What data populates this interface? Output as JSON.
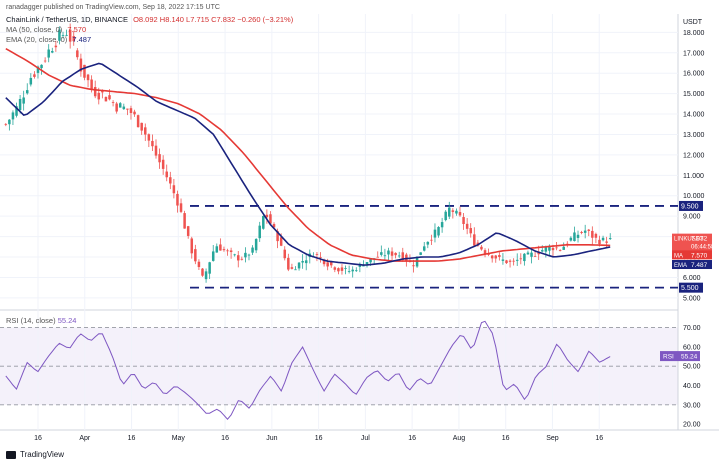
{
  "header": {
    "published": "ranadagger published on TradingView.com, Sep 18, 2022 17:15 UTC"
  },
  "legend": {
    "symbol": "ChainLink / TetherUS, 1D, BINANCE",
    "ohlc": "O8.092 H8.140 L7.715 C7.832 −0.260 (−3.21%)",
    "ma_label": "MA (50, close, 0)",
    "ma_value": "7.570",
    "ema_label": "EMA (20, close, 0)",
    "ema_value": "7.487",
    "rsi_label": "RSI (14, close)",
    "rsi_value": "55.24"
  },
  "colors": {
    "up": "#26a69a",
    "down": "#ef5350",
    "ma": "#e53935",
    "ema": "#1a237e",
    "rsi": "#7e57c2",
    "level": "#1a237e"
  },
  "chart_data": [
    {
      "type": "candlestick",
      "title": "ChainLink / TetherUS, 1D, BINANCE",
      "yaxis_unit": "USDT",
      "ylim": [
        4.7,
        18.8
      ],
      "y_ticks": [
        "18.000",
        "17.000",
        "16.000",
        "15.000",
        "14.000",
        "13.000",
        "12.000",
        "11.000",
        "10.000",
        "9.000",
        "8.000",
        "7.000",
        "6.000",
        "5.000"
      ],
      "x_ticks": [
        "16",
        "Apr",
        "16",
        "May",
        "16",
        "Jun",
        "16",
        "Jul",
        "16",
        "Aug",
        "16",
        "Sep",
        "16"
      ],
      "close_path": [
        13.5,
        14.4,
        15.8,
        16.6,
        17.6,
        18.1,
        16.4,
        15.2,
        14.9,
        14.4,
        14.2,
        13.4,
        12.2,
        11.0,
        9.6,
        7.4,
        5.9,
        7.6,
        7.2,
        6.9,
        7.3,
        9.2,
        8.0,
        6.3,
        6.8,
        7.2,
        6.7,
        6.4,
        6.3,
        6.7,
        7.0,
        7.2,
        7.1,
        6.6,
        7.7,
        8.3,
        9.4,
        8.8,
        7.7,
        7.2,
        6.9,
        6.7,
        7.0,
        7.2,
        7.5,
        7.4,
        8.0,
        8.3,
        7.8,
        7.83
      ],
      "price_levels": [
        {
          "label": "9.500",
          "value": 9.5
        },
        {
          "label": "5.500",
          "value": 5.5
        }
      ],
      "tags": [
        {
          "label": "LINKUSDT",
          "value": "7.832",
          "sub": "06:44:58"
        },
        {
          "label": "MA",
          "value": "7.570"
        },
        {
          "label": "EMA",
          "value": "7.487"
        }
      ],
      "ma_50": [
        17.2,
        16.6,
        15.9,
        15.4,
        15.2,
        15.1,
        15.0,
        14.8,
        14.5,
        14.0,
        13.2,
        12.1,
        10.8,
        9.5,
        8.4,
        7.6,
        7.1,
        6.9,
        6.8,
        6.8,
        6.8,
        6.9,
        7.1,
        7.3,
        7.4,
        7.5,
        7.6,
        7.6,
        7.57
      ],
      "ema_20": [
        14.8,
        13.9,
        14.6,
        15.6,
        16.2,
        16.5,
        15.9,
        15.3,
        14.6,
        14.2,
        13.8,
        13.0,
        11.5,
        10.0,
        8.6,
        7.6,
        7.1,
        6.8,
        6.7,
        6.6,
        6.7,
        6.9,
        7.0,
        7.0,
        7.2,
        7.6,
        8.2,
        7.8,
        7.3,
        7.0,
        7.1,
        7.3,
        7.49
      ]
    },
    {
      "type": "line",
      "title": "RSI (14, close)",
      "ylim": [
        18,
        76
      ],
      "y_ticks": [
        "70.00",
        "60.00",
        "50.00",
        "40.00",
        "30.00",
        "20.00"
      ],
      "levels": [
        70,
        50,
        30
      ],
      "tag_value": "55.24",
      "tag_label": "RSI",
      "values": [
        45,
        38,
        52,
        47,
        55,
        62,
        59,
        67,
        63,
        68,
        56,
        40,
        47,
        38,
        42,
        35,
        40,
        36,
        31,
        25,
        28,
        22,
        33,
        28,
        38,
        45,
        37,
        52,
        60,
        48,
        37,
        46,
        41,
        35,
        44,
        48,
        42,
        47,
        37,
        44,
        40,
        50,
        60,
        67,
        58,
        75,
        66,
        37,
        41,
        32,
        45,
        50,
        62,
        53,
        47,
        58,
        52,
        55
      ]
    }
  ]
}
